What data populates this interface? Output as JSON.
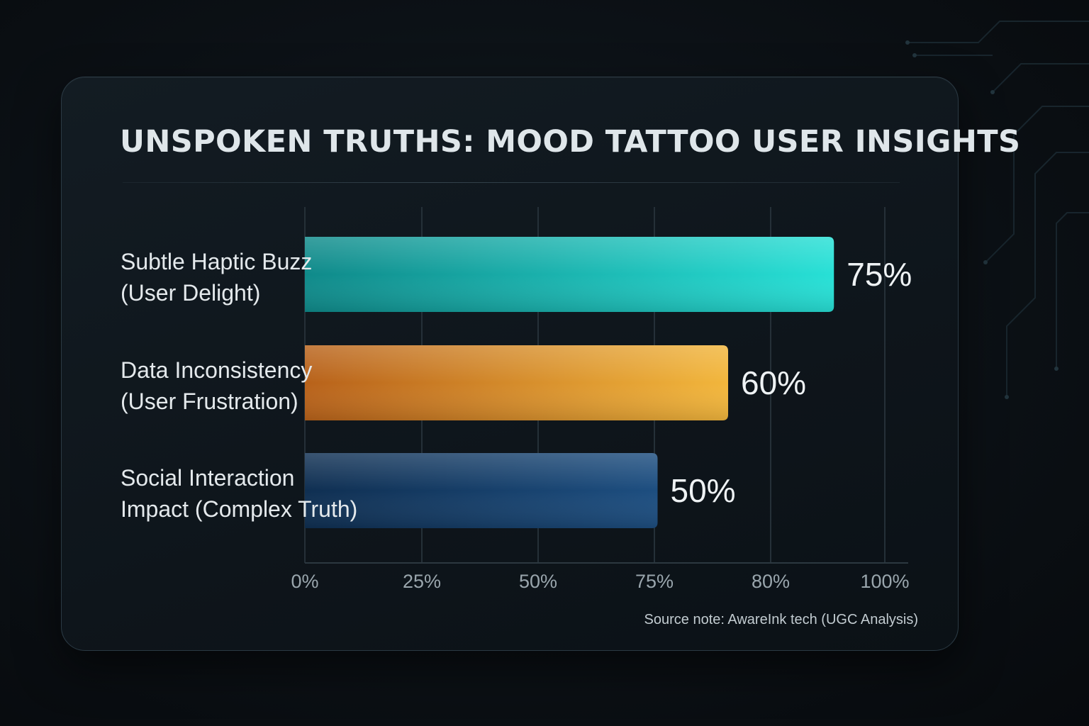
{
  "chart_data": {
    "type": "bar",
    "orientation": "horizontal",
    "title": "UNSPOKEN TRUTHS:  MOOD TATTOO USER INSIGHTS",
    "categories": [
      [
        "Subtle Haptic Buzz",
        "(User Delight)"
      ],
      [
        "Data Inconsistency",
        "(User Frustration)"
      ],
      [
        "Social Interaction",
        "Impact (Complex Truth)"
      ]
    ],
    "values": [
      75,
      60,
      50
    ],
    "value_labels": [
      "75%",
      "60%",
      "50%"
    ],
    "x_ticks": [
      "0%",
      "25%",
      "50%",
      "75%",
      "80%",
      "100%"
    ],
    "grid": true,
    "legend": "none",
    "source": "Source note: AwareInk tech (UGC Analysis)",
    "colors": {
      "bars": [
        [
          "#0f8a8a",
          "#27e0d6"
        ],
        [
          "#b8621a",
          "#f2b63c"
        ],
        [
          "#0f2f52",
          "#1d4e80"
        ]
      ],
      "background": "#0c1116",
      "card": "#111920"
    }
  }
}
